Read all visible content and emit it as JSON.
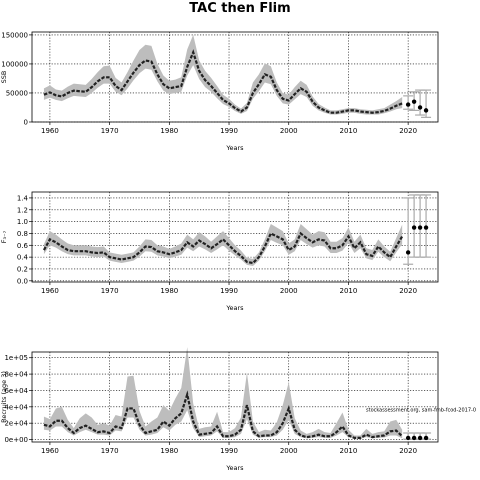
{
  "title": "TAC then Flim",
  "chart_data": [
    {
      "type": "line",
      "name": "ssb",
      "ylabel": "SSB",
      "xlabel": "Years",
      "xlim": [
        1957,
        2025
      ],
      "ylim": [
        0,
        155000
      ],
      "xticks": [
        1960,
        1970,
        1980,
        1990,
        2000,
        2010,
        2020
      ],
      "yticks": [
        0,
        50000,
        100000,
        150000
      ],
      "ytick_labels": [
        "0",
        "50000",
        "100000",
        "150000"
      ],
      "grid": true,
      "band_color": "#bdbdbd",
      "line_color": "#222222",
      "years": [
        1959,
        1960,
        1961,
        1962,
        1963,
        1964,
        1965,
        1966,
        1967,
        1968,
        1969,
        1970,
        1971,
        1972,
        1973,
        1974,
        1975,
        1976,
        1977,
        1978,
        1979,
        1980,
        1981,
        1982,
        1983,
        1984,
        1985,
        1986,
        1987,
        1988,
        1989,
        1990,
        1991,
        1992,
        1993,
        1994,
        1995,
        1996,
        1997,
        1998,
        1999,
        2000,
        2001,
        2002,
        2003,
        2004,
        2005,
        2006,
        2007,
        2008,
        2009,
        2010,
        2011,
        2012,
        2013,
        2014,
        2015,
        2016,
        2017,
        2018,
        2019
      ],
      "estimate": [
        47000,
        51000,
        46000,
        44000,
        50000,
        54000,
        53000,
        52000,
        60000,
        70000,
        77000,
        77000,
        62000,
        55000,
        70000,
        85000,
        98000,
        106000,
        104000,
        82000,
        65000,
        58000,
        60000,
        62000,
        95000,
        120000,
        88000,
        72000,
        62000,
        50000,
        38000,
        32000,
        24000,
        18000,
        25000,
        50000,
        65000,
        82000,
        78000,
        55000,
        40000,
        37000,
        48000,
        58000,
        52000,
        35000,
        25000,
        20000,
        16000,
        16000,
        18000,
        20000,
        20000,
        18000,
        17000,
        16000,
        17000,
        19000,
        23000,
        28000,
        32000
      ],
      "lower": [
        38000,
        42000,
        38000,
        36000,
        41000,
        45000,
        44000,
        43000,
        50000,
        59000,
        66000,
        66000,
        52000,
        46000,
        58000,
        72000,
        84000,
        92000,
        90000,
        70000,
        54000,
        48000,
        50000,
        52000,
        80000,
        98000,
        74000,
        60000,
        52000,
        41000,
        31000,
        26000,
        19000,
        14000,
        19000,
        40000,
        53000,
        68000,
        65000,
        45000,
        32000,
        30000,
        39000,
        48000,
        43000,
        28000,
        20000,
        16000,
        13000,
        13000,
        14000,
        16000,
        16000,
        14000,
        13000,
        13000,
        13000,
        15000,
        18000,
        22000,
        24000
      ],
      "upper": [
        58000,
        63000,
        56000,
        54000,
        61000,
        66000,
        65000,
        64000,
        74000,
        86000,
        96000,
        97000,
        76000,
        68000,
        86000,
        106000,
        124000,
        133000,
        131000,
        100000,
        80000,
        71000,
        73000,
        77000,
        125000,
        150000,
        106000,
        88000,
        76000,
        62000,
        47000,
        40000,
        30000,
        23000,
        33000,
        68000,
        82000,
        101000,
        96000,
        68000,
        50000,
        47000,
        60000,
        71000,
        64000,
        44000,
        31000,
        25000,
        20000,
        20000,
        22000,
        24000,
        24000,
        22000,
        21000,
        20000,
        22000,
        24000,
        30000,
        36000,
        43000
      ],
      "forecast": {
        "years": [
          2020,
          2021,
          2022,
          2023
        ],
        "values": [
          30000,
          35000,
          25000,
          20000
        ],
        "lower": [
          22000,
          20000,
          12000,
          8000
        ],
        "upper": [
          45000,
          52000,
          55000,
          55000
        ]
      }
    },
    {
      "type": "line",
      "name": "fbar",
      "ylabel": "F₃₋₇",
      "xlabel": "Years",
      "xlim": [
        1957,
        2025
      ],
      "ylim": [
        -0.02,
        1.5
      ],
      "xticks": [
        1960,
        1970,
        1980,
        1990,
        2000,
        2010,
        2020
      ],
      "yticks": [
        0,
        0.2,
        0.4,
        0.6,
        0.8,
        1.0,
        1.2,
        1.4
      ],
      "ytick_labels": [
        "0.0",
        "0.2",
        "0.4",
        "0.6",
        "0.8",
        "1.0",
        "1.2",
        "1.4"
      ],
      "grid": true,
      "band_color": "#bdbdbd",
      "line_color": "#222222",
      "years": [
        1959,
        1960,
        1961,
        1962,
        1963,
        1964,
        1965,
        1966,
        1967,
        1968,
        1969,
        1970,
        1971,
        1972,
        1973,
        1974,
        1975,
        1976,
        1977,
        1978,
        1979,
        1980,
        1981,
        1982,
        1983,
        1984,
        1985,
        1986,
        1987,
        1988,
        1989,
        1990,
        1991,
        1992,
        1993,
        1994,
        1995,
        1996,
        1997,
        1998,
        1999,
        2000,
        2001,
        2002,
        2003,
        2004,
        2005,
        2006,
        2007,
        2008,
        2009,
        2010,
        2011,
        2012,
        2013,
        2014,
        2015,
        2016,
        2017,
        2018,
        2019
      ],
      "estimate": [
        0.52,
        0.7,
        0.65,
        0.58,
        0.52,
        0.5,
        0.5,
        0.5,
        0.48,
        0.47,
        0.48,
        0.4,
        0.38,
        0.36,
        0.38,
        0.4,
        0.48,
        0.58,
        0.57,
        0.5,
        0.48,
        0.45,
        0.48,
        0.52,
        0.65,
        0.58,
        0.68,
        0.62,
        0.55,
        0.62,
        0.7,
        0.6,
        0.5,
        0.42,
        0.32,
        0.3,
        0.4,
        0.58,
        0.8,
        0.75,
        0.7,
        0.52,
        0.58,
        0.8,
        0.72,
        0.65,
        0.7,
        0.68,
        0.55,
        0.55,
        0.6,
        0.75,
        0.55,
        0.65,
        0.45,
        0.42,
        0.58,
        0.48,
        0.4,
        0.58,
        0.75
      ],
      "lower": [
        0.45,
        0.6,
        0.56,
        0.5,
        0.45,
        0.43,
        0.43,
        0.43,
        0.41,
        0.4,
        0.41,
        0.34,
        0.32,
        0.3,
        0.32,
        0.34,
        0.41,
        0.5,
        0.49,
        0.43,
        0.41,
        0.38,
        0.41,
        0.44,
        0.56,
        0.5,
        0.58,
        0.53,
        0.47,
        0.53,
        0.6,
        0.51,
        0.43,
        0.36,
        0.27,
        0.25,
        0.34,
        0.5,
        0.69,
        0.64,
        0.6,
        0.44,
        0.5,
        0.69,
        0.62,
        0.56,
        0.6,
        0.58,
        0.47,
        0.47,
        0.51,
        0.64,
        0.47,
        0.55,
        0.38,
        0.35,
        0.49,
        0.4,
        0.33,
        0.48,
        0.62
      ],
      "upper": [
        0.62,
        0.84,
        0.78,
        0.7,
        0.63,
        0.6,
        0.6,
        0.6,
        0.58,
        0.57,
        0.58,
        0.48,
        0.46,
        0.44,
        0.46,
        0.48,
        0.58,
        0.7,
        0.69,
        0.6,
        0.58,
        0.54,
        0.58,
        0.63,
        0.78,
        0.7,
        0.82,
        0.75,
        0.66,
        0.75,
        0.84,
        0.72,
        0.6,
        0.51,
        0.39,
        0.37,
        0.48,
        0.7,
        0.96,
        0.9,
        0.84,
        0.63,
        0.7,
        0.96,
        0.87,
        0.78,
        0.84,
        0.82,
        0.66,
        0.66,
        0.72,
        0.9,
        0.66,
        0.78,
        0.55,
        0.52,
        0.7,
        0.58,
        0.49,
        0.72,
        0.95
      ],
      "forecast": {
        "years": [
          2020,
          2021,
          2022,
          2023
        ],
        "values": [
          0.48,
          0.9,
          0.9,
          0.9
        ],
        "lower": [
          0.28,
          0.4,
          0.4,
          0.4
        ],
        "upper": [
          1.4,
          1.45,
          1.45,
          1.45
        ]
      }
    },
    {
      "type": "line",
      "name": "recruits",
      "ylabel": "Recruits (age 3)",
      "xlabel": "Years",
      "xlim": [
        1957,
        2025
      ],
      "ylim": [
        -3000,
        107000
      ],
      "xticks": [
        1960,
        1970,
        1980,
        1990,
        2000,
        2010,
        2020
      ],
      "yticks": [
        0,
        20000,
        40000,
        60000,
        80000,
        100000
      ],
      "ytick_labels": [
        "0e+00",
        "2e+04",
        "4e+04",
        "6e+04",
        "8e+04",
        "1e+05"
      ],
      "grid": true,
      "band_color": "#bdbdbd",
      "line_color": "#222222",
      "annotation": "stockassessment.org, sam-fmb-fcod-2017-0",
      "years": [
        1959,
        1960,
        1961,
        1962,
        1963,
        1964,
        1965,
        1966,
        1967,
        1968,
        1969,
        1970,
        1971,
        1972,
        1973,
        1974,
        1975,
        1976,
        1977,
        1978,
        1979,
        1980,
        1981,
        1982,
        1983,
        1984,
        1985,
        1986,
        1987,
        1988,
        1989,
        1990,
        1991,
        1992,
        1993,
        1994,
        1995,
        1996,
        1997,
        1998,
        1999,
        2000,
        2001,
        2002,
        2003,
        2004,
        2005,
        2006,
        2007,
        2008,
        2009,
        2010,
        2011,
        2012,
        2013,
        2014,
        2015,
        2016,
        2017,
        2018,
        2019
      ],
      "estimate": [
        18000,
        16000,
        23000,
        23000,
        14000,
        8000,
        14000,
        17000,
        13000,
        9000,
        10000,
        8000,
        16000,
        14000,
        38000,
        38000,
        18000,
        8000,
        10000,
        12000,
        22000,
        17000,
        26000,
        32000,
        55000,
        22000,
        6000,
        7000,
        8000,
        16000,
        4000,
        4000,
        6000,
        12000,
        42000,
        10000,
        4000,
        5000,
        5000,
        9000,
        20000,
        38000,
        12000,
        5000,
        3000,
        4000,
        6000,
        4000,
        4000,
        9000,
        16000,
        5000,
        2000,
        2000,
        6000,
        3000,
        4000,
        5000,
        10000,
        11000,
        4000
      ],
      "lower": [
        12000,
        11000,
        16000,
        16000,
        9000,
        5000,
        9000,
        12000,
        9000,
        6000,
        6000,
        5000,
        11000,
        10000,
        27000,
        27000,
        12000,
        5000,
        6000,
        8000,
        15000,
        11000,
        18000,
        22000,
        36000,
        14000,
        3000,
        4000,
        5000,
        10000,
        2000,
        2000,
        3000,
        7000,
        25000,
        6000,
        2000,
        3000,
        3000,
        5000,
        12000,
        24000,
        7000,
        3000,
        1500,
        2000,
        3000,
        2000,
        2000,
        5000,
        9000,
        3000,
        1000,
        1000,
        3000,
        1500,
        2000,
        2500,
        5000,
        5000,
        1500
      ],
      "upper": [
        28000,
        25000,
        38000,
        40000,
        24000,
        14000,
        26000,
        32000,
        27000,
        18000,
        20000,
        17000,
        30000,
        28000,
        77000,
        78000,
        35000,
        16000,
        22000,
        27000,
        42000,
        35000,
        50000,
        63000,
        113000,
        44000,
        13000,
        15000,
        16000,
        34000,
        9000,
        9000,
        14000,
        27000,
        82000,
        22000,
        9000,
        12000,
        11000,
        21000,
        42000,
        70000,
        26000,
        11000,
        7000,
        9000,
        13000,
        9000,
        8000,
        20000,
        33000,
        12000,
        5000,
        5000,
        13000,
        7000,
        9000,
        10000,
        22000,
        24000,
        12000
      ],
      "forecast": {
        "years": [
          2020,
          2021,
          2022,
          2023
        ],
        "values": [
          2000,
          2000,
          2000,
          2000
        ],
        "lower": [
          500,
          500,
          500,
          500
        ],
        "upper": [
          8000,
          8000,
          8000,
          8000
        ]
      }
    }
  ]
}
